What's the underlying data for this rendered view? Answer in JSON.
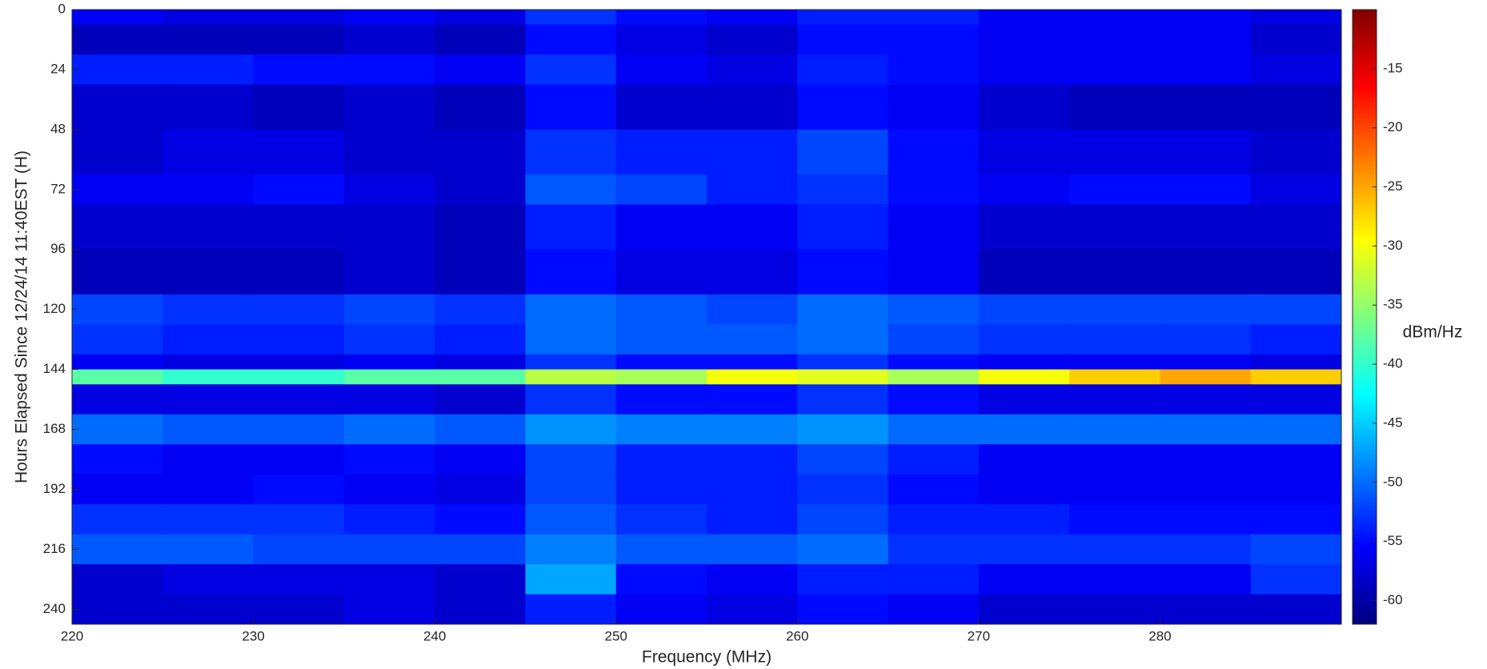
{
  "chart_data": {
    "type": "heatmap",
    "colormap": "jet",
    "x_label": "Frequency (MHz)",
    "y_label": "Hours Elapsed Since 12/24/14 11:40EST (H)",
    "colorbar_label": "dBm/Hz",
    "xlim": [
      220,
      290
    ],
    "ylim": [
      0,
      246
    ],
    "y_inverted": true,
    "xticks": [
      220,
      230,
      240,
      250,
      260,
      270,
      280
    ],
    "yticks": [
      0,
      24,
      48,
      72,
      96,
      120,
      144,
      168,
      192,
      216,
      240
    ],
    "clim": [
      -62,
      -10
    ],
    "cticks": [
      -15,
      -20,
      -25,
      -30,
      -35,
      -40,
      -45,
      -50,
      -55,
      -60
    ],
    "x_edges": [
      220,
      225,
      230,
      235,
      240,
      245,
      250,
      255,
      260,
      265,
      270,
      275,
      280,
      285,
      290
    ],
    "y_edges": [
      0,
      6,
      18,
      30,
      48,
      66,
      78,
      96,
      114,
      126,
      138,
      144,
      150,
      162,
      174,
      186,
      198,
      210,
      222,
      234,
      246
    ],
    "values": [
      [
        -56,
        -57,
        -57,
        -56,
        -57,
        -53,
        -55,
        -56,
        -54,
        -54,
        -56,
        -56,
        -56,
        -57
      ],
      [
        -59,
        -59,
        -59,
        -58,
        -59,
        -55,
        -57,
        -58,
        -55,
        -55,
        -56,
        -56,
        -56,
        -58
      ],
      [
        -54,
        -54,
        -55,
        -55,
        -56,
        -53,
        -56,
        -57,
        -54,
        -55,
        -56,
        -56,
        -56,
        -57
      ],
      [
        -58,
        -58,
        -59,
        -58,
        -59,
        -55,
        -58,
        -58,
        -55,
        -56,
        -58,
        -59,
        -59,
        -59
      ],
      [
        -58,
        -57,
        -57,
        -58,
        -58,
        -53,
        -54,
        -54,
        -52,
        -55,
        -57,
        -57,
        -57,
        -58
      ],
      [
        -56,
        -56,
        -55,
        -57,
        -58,
        -51,
        -52,
        -54,
        -53,
        -55,
        -56,
        -55,
        -55,
        -57
      ],
      [
        -58,
        -58,
        -58,
        -58,
        -59,
        -54,
        -56,
        -56,
        -54,
        -56,
        -58,
        -58,
        -58,
        -58
      ],
      [
        -59,
        -59,
        -59,
        -58,
        -59,
        -55,
        -57,
        -57,
        -55,
        -56,
        -59,
        -59,
        -59,
        -59
      ],
      [
        -52,
        -53,
        -53,
        -52,
        -53,
        -50,
        -51,
        -52,
        -50,
        -51,
        -52,
        -52,
        -52,
        -52
      ],
      [
        -53,
        -54,
        -54,
        -53,
        -54,
        -50,
        -51,
        -51,
        -50,
        -52,
        -53,
        -53,
        -53,
        -54
      ],
      [
        -56,
        -57,
        -57,
        -56,
        -57,
        -53,
        -55,
        -55,
        -53,
        -55,
        -56,
        -56,
        -56,
        -57
      ],
      [
        -38,
        -40,
        -40,
        -38,
        -38,
        -33,
        -34,
        -30,
        -31,
        -34,
        -30,
        -27,
        -25,
        -27
      ],
      [
        -57,
        -57,
        -57,
        -57,
        -58,
        -53,
        -55,
        -55,
        -53,
        -55,
        -57,
        -57,
        -57,
        -57
      ],
      [
        -50,
        -51,
        -51,
        -50,
        -51,
        -48,
        -49,
        -49,
        -48,
        -50,
        -50,
        -50,
        -50,
        -50
      ],
      [
        -55,
        -56,
        -56,
        -55,
        -56,
        -52,
        -54,
        -54,
        -52,
        -54,
        -56,
        -56,
        -56,
        -56
      ],
      [
        -56,
        -56,
        -55,
        -56,
        -57,
        -52,
        -54,
        -54,
        -53,
        -55,
        -56,
        -56,
        -56,
        -56
      ],
      [
        -53,
        -53,
        -53,
        -54,
        -55,
        -51,
        -53,
        -54,
        -52,
        -54,
        -54,
        -55,
        -55,
        -55
      ],
      [
        -51,
        -51,
        -52,
        -52,
        -52,
        -49,
        -51,
        -51,
        -50,
        -53,
        -53,
        -53,
        -53,
        -52
      ],
      [
        -58,
        -57,
        -57,
        -57,
        -58,
        -47,
        -55,
        -56,
        -54,
        -54,
        -56,
        -56,
        -56,
        -53
      ],
      [
        -58,
        -58,
        -58,
        -57,
        -58,
        -54,
        -56,
        -57,
        -55,
        -56,
        -58,
        -58,
        -58,
        -58
      ]
    ]
  }
}
